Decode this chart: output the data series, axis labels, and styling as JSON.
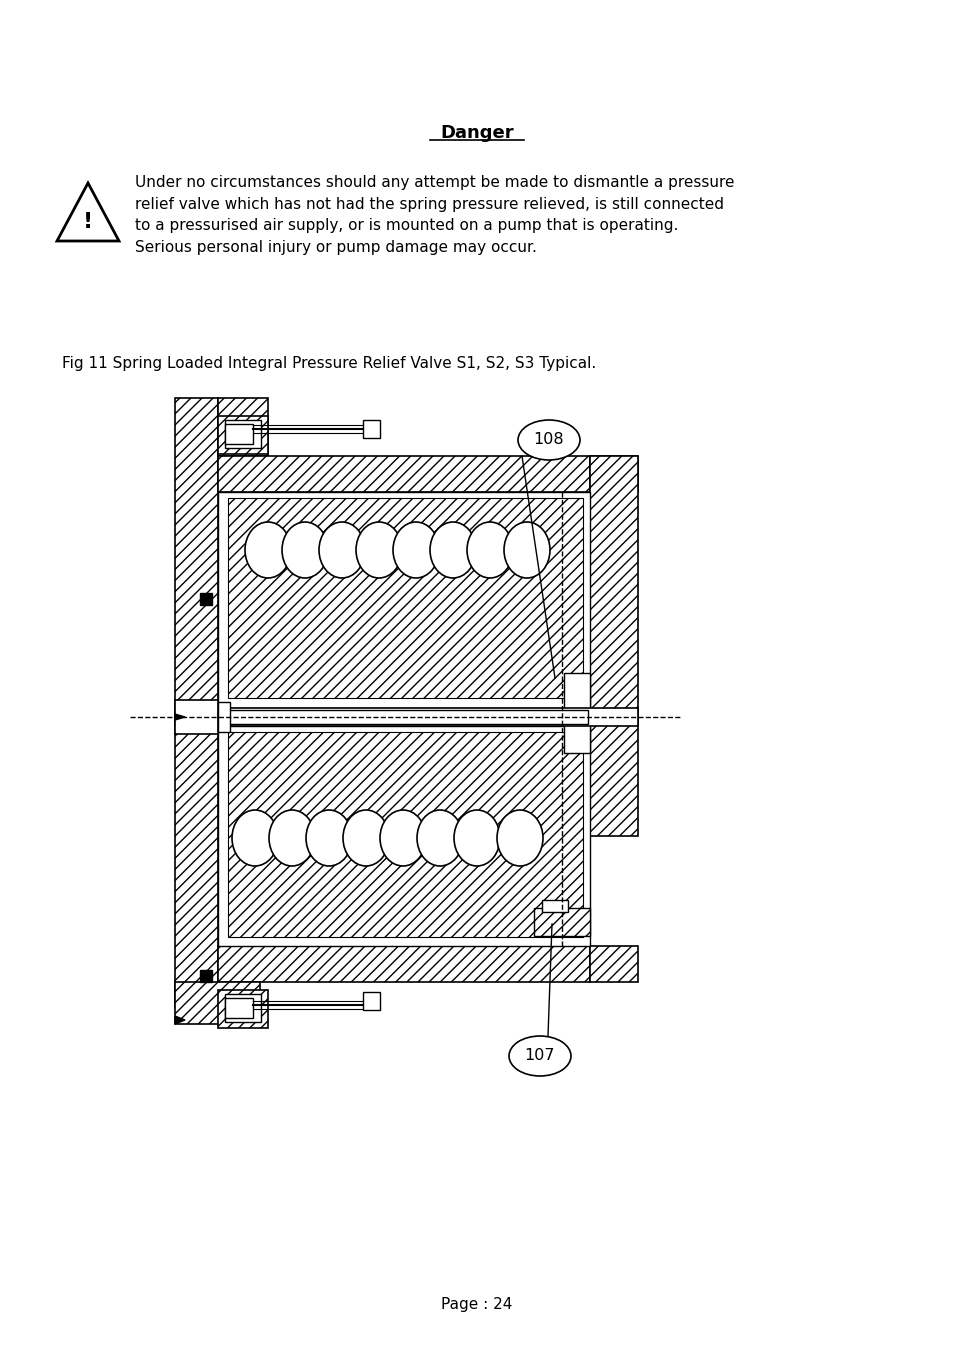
{
  "background_color": "#ffffff",
  "title_text": "Danger",
  "title_fontsize": 13,
  "warning_text": "Under no circumstances should any attempt be made to dismantle a pressure\nrelief valve which has not had the spring pressure relieved, is still connected\nto a pressurised air supply, or is mounted on a pump that is operating.\nSerious personal injury or pump damage may occur.",
  "warning_fontsize": 11,
  "fig_caption": "Fig 11 Spring Loaded Integral Pressure Relief Valve S1, S2, S3 Typical.",
  "fig_caption_fontsize": 11,
  "page_text": "Page : 24",
  "page_fontsize": 11,
  "label_108": "108",
  "label_107": "107",
  "hatch_density": "///",
  "line_color": "#000000"
}
